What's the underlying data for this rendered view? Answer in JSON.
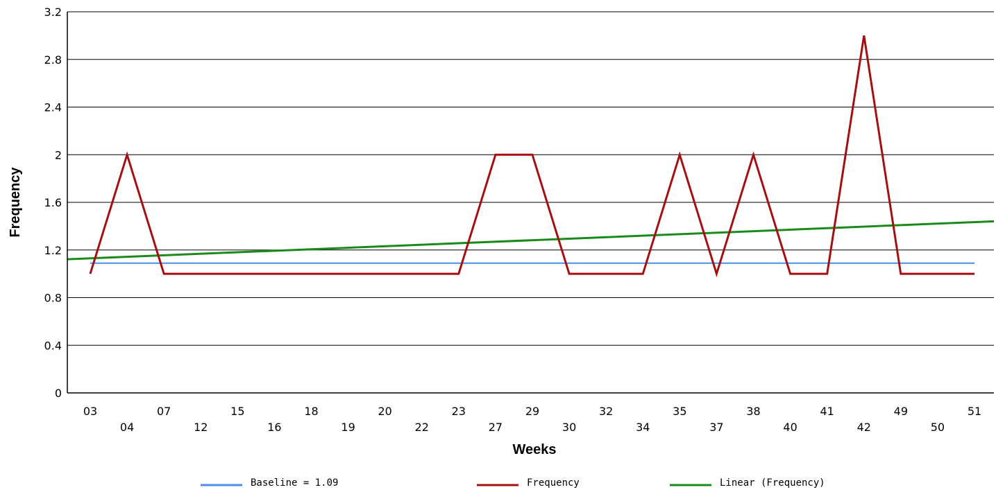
{
  "chart_data": {
    "type": "line",
    "xlabel": "Weeks",
    "ylabel": "Frequency",
    "categories": [
      "03",
      "04",
      "07",
      "12",
      "15",
      "16",
      "18",
      "19",
      "20",
      "22",
      "23",
      "27",
      "29",
      "30",
      "32",
      "34",
      "35",
      "37",
      "38",
      "40",
      "41",
      "42",
      "49",
      "50",
      "51"
    ],
    "ylim": [
      0,
      3.2
    ],
    "yticks": [
      0,
      0.4,
      0.8,
      1.2,
      1.6,
      2,
      2.4,
      2.8,
      3.2
    ],
    "ytick_labels": [
      "0",
      "0.4",
      "0.8",
      "1.2",
      "1.6",
      "2",
      "2.4",
      "2.8",
      "3.2"
    ],
    "grid": true,
    "legend_position": "bottom",
    "series": [
      {
        "name": "Baseline = 1.09",
        "color": "#4a90e2",
        "values": [
          1.09,
          1.09,
          1.09,
          1.09,
          1.09,
          1.09,
          1.09,
          1.09,
          1.09,
          1.09,
          1.09,
          1.09,
          1.09,
          1.09,
          1.09,
          1.09,
          1.09,
          1.09,
          1.09,
          1.09,
          1.09,
          1.09,
          1.09,
          1.09,
          1.09
        ]
      },
      {
        "name": "Frequency",
        "color": "#a50f0f",
        "values": [
          1,
          2,
          1,
          1,
          1,
          1,
          1,
          1,
          1,
          1,
          1,
          2,
          2,
          1,
          1,
          1,
          2,
          1,
          2,
          1,
          1,
          3,
          1,
          1,
          1
        ]
      },
      {
        "name": "Linear (Frequency)",
        "color": "#1a8a1a",
        "trendline": true,
        "values": [
          1.13,
          1.1427,
          1.1553,
          1.168,
          1.1807,
          1.1933,
          1.206,
          1.2187,
          1.2313,
          1.244,
          1.2567,
          1.2693,
          1.282,
          1.2947,
          1.3073,
          1.32,
          1.3327,
          1.3453,
          1.358,
          1.3707,
          1.3833,
          1.396,
          1.4087,
          1.4213,
          1.434
        ]
      }
    ]
  }
}
